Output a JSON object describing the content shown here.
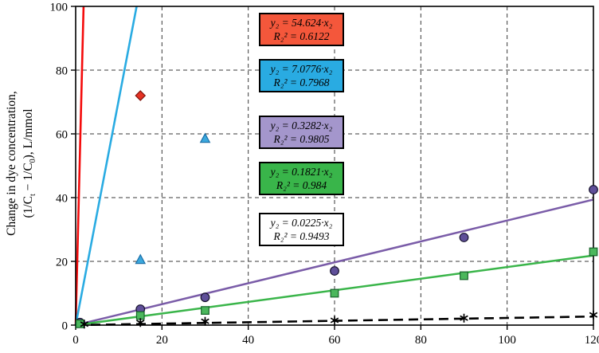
{
  "figure": {
    "background": "#ffffff"
  },
  "labels": {
    "y_axis_line1": "Change in dye concentration,",
    "y2_parts": [
      "(1/C",
      "t",
      " − 1/C",
      "0",
      "), L/mmol"
    ]
  },
  "chart_data": {
    "type": "scatter",
    "title": "",
    "xlabel": "",
    "ylabel": "Change in dye concentration, (1/Ct − 1/C0), L/mmol",
    "xlim": [
      0,
      120
    ],
    "ylim": [
      0,
      100
    ],
    "xticks": [
      0,
      20,
      40,
      60,
      80,
      100,
      120
    ],
    "yticks": [
      0,
      20,
      40,
      60,
      80,
      100
    ],
    "grid": {
      "style": "dashed",
      "color": "#3a3a3a"
    },
    "legend_position": "inside-top-center",
    "series": [
      {
        "name": "slope-54.624",
        "marker": "diamond",
        "marker_fill": "#e53224",
        "marker_edge": "#7e120b",
        "line_color": "#f40b0b",
        "line_style": "solid",
        "line_width": 2.6,
        "slope": 54.624,
        "points": [
          [
            15,
            72
          ]
        ],
        "equation": "y₂ = 54.624·x₂",
        "r2": "R₂² = 0.6122",
        "box_fill": "#f4573b"
      },
      {
        "name": "slope-7.0776",
        "marker": "triangle",
        "marker_fill": "#3ba8dd",
        "marker_edge": "#1a6fa8",
        "line_color": "#29abe2",
        "line_style": "solid",
        "line_width": 2.6,
        "slope": 7.0776,
        "points": [
          [
            15,
            20.5
          ],
          [
            30,
            58.5
          ]
        ],
        "equation": "y₂ = 7.0776·x₂",
        "r2": "R₂² = 0.7968",
        "box_fill": "#29abe2"
      },
      {
        "name": "slope-0.3282",
        "marker": "circle",
        "marker_fill": "#5f4f99",
        "marker_edge": "#17122e",
        "line_color": "#7a5ca8",
        "line_style": "solid",
        "line_width": 2.5,
        "slope": 0.3282,
        "points": [
          [
            1,
            0.8
          ],
          [
            15,
            5
          ],
          [
            30,
            8.7
          ],
          [
            60,
            17
          ],
          [
            90,
            27.5
          ],
          [
            120,
            42.5
          ]
        ],
        "equation": "y₂ = 0.3282·x₂",
        "r2": "R₂² = 0.9805",
        "box_fill": "#a496cc"
      },
      {
        "name": "slope-0.1821",
        "marker": "square",
        "marker_fill": "#4bb75c",
        "marker_edge": "#17642a",
        "line_color": "#3ab54a",
        "line_style": "solid",
        "line_width": 2.5,
        "slope": 0.1821,
        "points": [
          [
            1,
            0.4
          ],
          [
            15,
            3
          ],
          [
            30,
            4.6
          ],
          [
            60,
            10
          ],
          [
            90,
            15.5
          ],
          [
            120,
            23
          ]
        ],
        "equation": "y₂ = 0.1821·x₂",
        "r2": "R₂² = 0.984",
        "box_fill": "#39b54a"
      },
      {
        "name": "slope-0.0225",
        "marker": "asterisk",
        "marker_fill": "#000000",
        "marker_edge": "#000000",
        "line_color": "#000000",
        "line_style": "dashed",
        "line_width": 2.6,
        "slope": 0.0225,
        "points": [
          [
            2,
            0.3
          ],
          [
            15,
            0.8
          ],
          [
            30,
            1.2
          ],
          [
            60,
            1.5
          ],
          [
            90,
            2.2
          ],
          [
            120,
            3.2
          ]
        ],
        "equation": "y₂ = 0.0225·x₂",
        "r2": "R₂² = 0.9493",
        "box_fill": "#ffffff"
      }
    ]
  }
}
